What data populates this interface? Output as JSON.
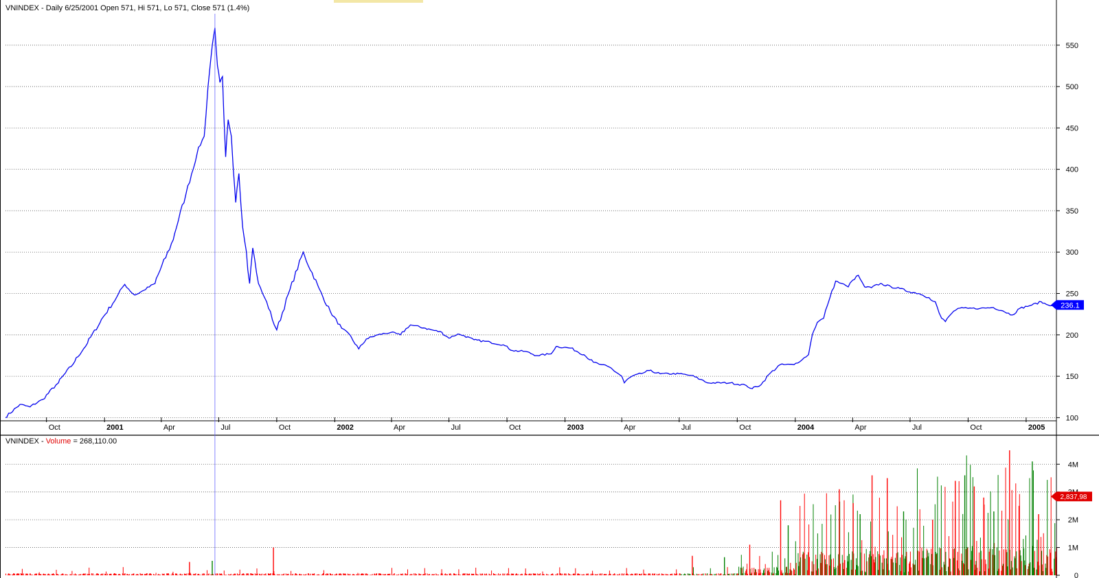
{
  "colors": {
    "price_line": "#0000ee",
    "volume_up": "#008000",
    "volume_down": "#ff0000",
    "last_price_marker": "#0000ff",
    "last_volume_marker": "#e00000",
    "grid": "#555555",
    "cursor": "#6666ff"
  },
  "price_panel": {
    "header": {
      "symbol": "VNINDEX",
      "sep": " - ",
      "info": "Daily 6/25/2001 Open 571, Hi 571, Lo 571, Close 571 (1.4%)"
    },
    "last_value_label": "236.1"
  },
  "volume_panel": {
    "header": {
      "symbol": "VNINDEX",
      "sep": " - ",
      "name": "Volume",
      "value": " = 268,110.00"
    },
    "last_value_label": "2,837,98"
  },
  "chart_data": [
    {
      "type": "line",
      "series": [
        {
          "points": [
            [
              "2000-07-28",
              100
            ],
            [
              "2000-08-20",
              116
            ],
            [
              "2000-09-05",
              113
            ],
            [
              "2000-09-25",
              122
            ],
            [
              "2000-10-20",
              142
            ],
            [
              "2000-11-15",
              168
            ],
            [
              "2000-12-05",
              190
            ],
            [
              "2000-12-25",
              215
            ],
            [
              "2001-01-20",
              245
            ],
            [
              "2001-02-02",
              261
            ],
            [
              "2001-02-18",
              248
            ],
            [
              "2001-03-05",
              254
            ],
            [
              "2001-03-22",
              262
            ],
            [
              "2001-04-20",
              315
            ],
            [
              "2001-05-10",
              370
            ],
            [
              "2001-05-28",
              420
            ],
            [
              "2001-06-08",
              440
            ],
            [
              "2001-06-18",
              530
            ],
            [
              "2001-06-25",
              571
            ],
            [
              "2001-06-29",
              525
            ],
            [
              "2001-07-03",
              505
            ],
            [
              "2001-07-07",
              512
            ],
            [
              "2001-07-12",
              415
            ],
            [
              "2001-07-16",
              460
            ],
            [
              "2001-07-21",
              440
            ],
            [
              "2001-07-28",
              360
            ],
            [
              "2001-08-02",
              395
            ],
            [
              "2001-08-08",
              330
            ],
            [
              "2001-08-14",
              300
            ],
            [
              "2001-08-19",
              262
            ],
            [
              "2001-08-24",
              305
            ],
            [
              "2001-09-02",
              262
            ],
            [
              "2001-09-15",
              240
            ],
            [
              "2001-10-01",
              206
            ],
            [
              "2001-10-22",
              255
            ],
            [
              "2001-11-12",
              300
            ],
            [
              "2001-12-05",
              260
            ],
            [
              "2001-12-25",
              228
            ],
            [
              "2002-01-12",
              208
            ],
            [
              "2002-01-25",
              200
            ],
            [
              "2002-02-08",
              183
            ],
            [
              "2002-02-20",
              195
            ],
            [
              "2002-03-10",
              200
            ],
            [
              "2002-03-31",
              203
            ],
            [
              "2002-04-15",
              200
            ],
            [
              "2002-05-01",
              212
            ],
            [
              "2002-05-25",
              208
            ],
            [
              "2002-06-20",
              203
            ],
            [
              "2002-07-01",
              196
            ],
            [
              "2002-07-15",
              201
            ],
            [
              "2002-07-25",
              199
            ],
            [
              "2002-08-10",
              194
            ],
            [
              "2002-09-05",
              191
            ],
            [
              "2002-09-25",
              188
            ],
            [
              "2002-10-10",
              181
            ],
            [
              "2002-10-30",
              180
            ],
            [
              "2002-11-18",
              175
            ],
            [
              "2002-12-10",
              177
            ],
            [
              "2002-12-18",
              186
            ],
            [
              "2003-01-10",
              184
            ],
            [
              "2003-01-31",
              176
            ],
            [
              "2003-02-15",
              167
            ],
            [
              "2003-02-28",
              164
            ],
            [
              "2003-03-15",
              160
            ],
            [
              "2003-04-01",
              150
            ],
            [
              "2003-04-05",
              142
            ],
            [
              "2003-04-15",
              149
            ],
            [
              "2003-05-05",
              154
            ],
            [
              "2003-05-15",
              157
            ],
            [
              "2003-06-01",
              153
            ],
            [
              "2003-07-01",
              153
            ],
            [
              "2003-07-20",
              151
            ],
            [
              "2003-08-05",
              146
            ],
            [
              "2003-08-15",
              142
            ],
            [
              "2003-09-20",
              142
            ],
            [
              "2003-10-15",
              139
            ],
            [
              "2003-10-25",
              135
            ],
            [
              "2003-11-08",
              140
            ],
            [
              "2003-11-20",
              152
            ],
            [
              "2003-12-08",
              164
            ],
            [
              "2003-12-30",
              164
            ],
            [
              "2004-01-12",
              170
            ],
            [
              "2004-01-22",
              176
            ],
            [
              "2004-01-28",
              200
            ],
            [
              "2004-02-05",
              215
            ],
            [
              "2004-02-15",
              220
            ],
            [
              "2004-02-25",
              245
            ],
            [
              "2004-03-05",
              265
            ],
            [
              "2004-03-15",
              262
            ],
            [
              "2004-03-25",
              258
            ],
            [
              "2004-04-01",
              266
            ],
            [
              "2004-04-10",
              272
            ],
            [
              "2004-04-20",
              258
            ],
            [
              "2004-05-01",
              257
            ],
            [
              "2004-05-15",
              262
            ],
            [
              "2004-06-01",
              258
            ],
            [
              "2004-06-15",
              256
            ],
            [
              "2004-06-30",
              252
            ],
            [
              "2004-07-15",
              250
            ],
            [
              "2004-07-31",
              245
            ],
            [
              "2004-08-10",
              240
            ],
            [
              "2004-08-20",
              220
            ],
            [
              "2004-08-26",
              216
            ],
            [
              "2004-09-05",
              226
            ],
            [
              "2004-09-15",
              232
            ],
            [
              "2004-10-01",
              232
            ],
            [
              "2004-10-20",
              232
            ],
            [
              "2004-11-10",
              233
            ],
            [
              "2004-11-25",
              229
            ],
            [
              "2004-12-10",
              224
            ],
            [
              "2004-12-22",
              232
            ],
            [
              "2005-01-10",
              236
            ],
            [
              "2005-01-25",
              240
            ],
            [
              "2005-02-05",
              236
            ],
            [
              "2005-02-18",
              236
            ]
          ]
        }
      ],
      "x_range": [
        "2000-07-28",
        "2005-02-18"
      ],
      "x_tick_labels": [
        {
          "date": "2000-10-01",
          "label": "Oct",
          "bold": false
        },
        {
          "date": "2001-01-01",
          "label": "2001",
          "bold": true
        },
        {
          "date": "2001-04-01",
          "label": "Apr",
          "bold": false
        },
        {
          "date": "2001-07-01",
          "label": "Jul",
          "bold": false
        },
        {
          "date": "2001-10-01",
          "label": "Oct",
          "bold": false
        },
        {
          "date": "2002-01-01",
          "label": "2002",
          "bold": true
        },
        {
          "date": "2002-04-01",
          "label": "Apr",
          "bold": false
        },
        {
          "date": "2002-07-01",
          "label": "Jul",
          "bold": false
        },
        {
          "date": "2002-10-01",
          "label": "Oct",
          "bold": false
        },
        {
          "date": "2003-01-01",
          "label": "2003",
          "bold": true
        },
        {
          "date": "2003-04-01",
          "label": "Apr",
          "bold": false
        },
        {
          "date": "2003-07-01",
          "label": "Jul",
          "bold": false
        },
        {
          "date": "2003-10-01",
          "label": "Oct",
          "bold": false
        },
        {
          "date": "2004-01-01",
          "label": "2004",
          "bold": true
        },
        {
          "date": "2004-04-01",
          "label": "Apr",
          "bold": false
        },
        {
          "date": "2004-07-01",
          "label": "Jul",
          "bold": false
        },
        {
          "date": "2004-10-01",
          "label": "Oct",
          "bold": false
        },
        {
          "date": "2005-01-01",
          "label": "2005",
          "bold": true
        }
      ],
      "y_ticks": [
        100,
        150,
        200,
        250,
        300,
        350,
        400,
        450,
        500,
        550
      ],
      "y_tick_labels": [
        "100",
        "150",
        "200",
        "250",
        "300",
        "350",
        "400",
        "450",
        "500",
        "550"
      ],
      "ylim": [
        97,
        583
      ],
      "grid": true,
      "cursor_date": "2001-06-25",
      "last_value": 236.1
    },
    {
      "type": "bar",
      "series": [
        {
          "segments": [
            {
              "from": "2000-07-28",
              "to": "2003-09-30",
              "typical": 60000,
              "spike_every": 19,
              "spike_max": 300000
            },
            {
              "from": "2003-10-01",
              "to": "2003-12-31",
              "typical": 250000,
              "spike_every": 7,
              "spike_max": 1000000
            },
            {
              "from": "2004-01-01",
              "to": "2004-06-30",
              "typical": 700000,
              "spike_every": 5,
              "spike_max": 3000000
            },
            {
              "from": "2004-07-01",
              "to": "2005-02-18",
              "typical": 850000,
              "spike_every": 4,
              "spike_max": 4400000
            }
          ],
          "spikes": [
            [
              "2001-09-25",
              1000000
            ],
            [
              "2001-06-20",
              520000
            ],
            [
              "2001-05-15",
              480000
            ],
            [
              "2003-07-21",
              700000
            ],
            [
              "2003-09-10",
              650000
            ],
            [
              "2003-10-20",
              1100000
            ],
            [
              "2003-12-08",
              2700000
            ],
            [
              "2003-12-20",
              1800000
            ],
            [
              "2004-03-10",
              3100000
            ],
            [
              "2004-04-01",
              2600000
            ],
            [
              "2004-04-12",
              2200000
            ],
            [
              "2004-05-01",
              3600000
            ],
            [
              "2004-05-25",
              3500000
            ],
            [
              "2004-06-20",
              2300000
            ],
            [
              "2004-08-05",
              2000000
            ],
            [
              "2004-09-10",
              3400000
            ],
            [
              "2004-09-25",
              3600000
            ],
            [
              "2004-10-10",
              3200000
            ],
            [
              "2004-10-25",
              2800000
            ],
            [
              "2004-11-10",
              2300000
            ],
            [
              "2004-12-05",
              4500000
            ],
            [
              "2004-12-20",
              2500000
            ],
            [
              "2005-01-10",
              4100000
            ],
            [
              "2005-01-20",
              2200000
            ]
          ]
        }
      ],
      "x_range": [
        "2000-07-28",
        "2005-02-18"
      ],
      "y_ticks": [
        0,
        1000000,
        2000000,
        3000000,
        4000000
      ],
      "y_tick_labels": [
        "0",
        "1M",
        "2M",
        "3M",
        "4M"
      ],
      "ylim": [
        0,
        4600000
      ],
      "grid": true,
      "last_value": 2837980
    }
  ]
}
